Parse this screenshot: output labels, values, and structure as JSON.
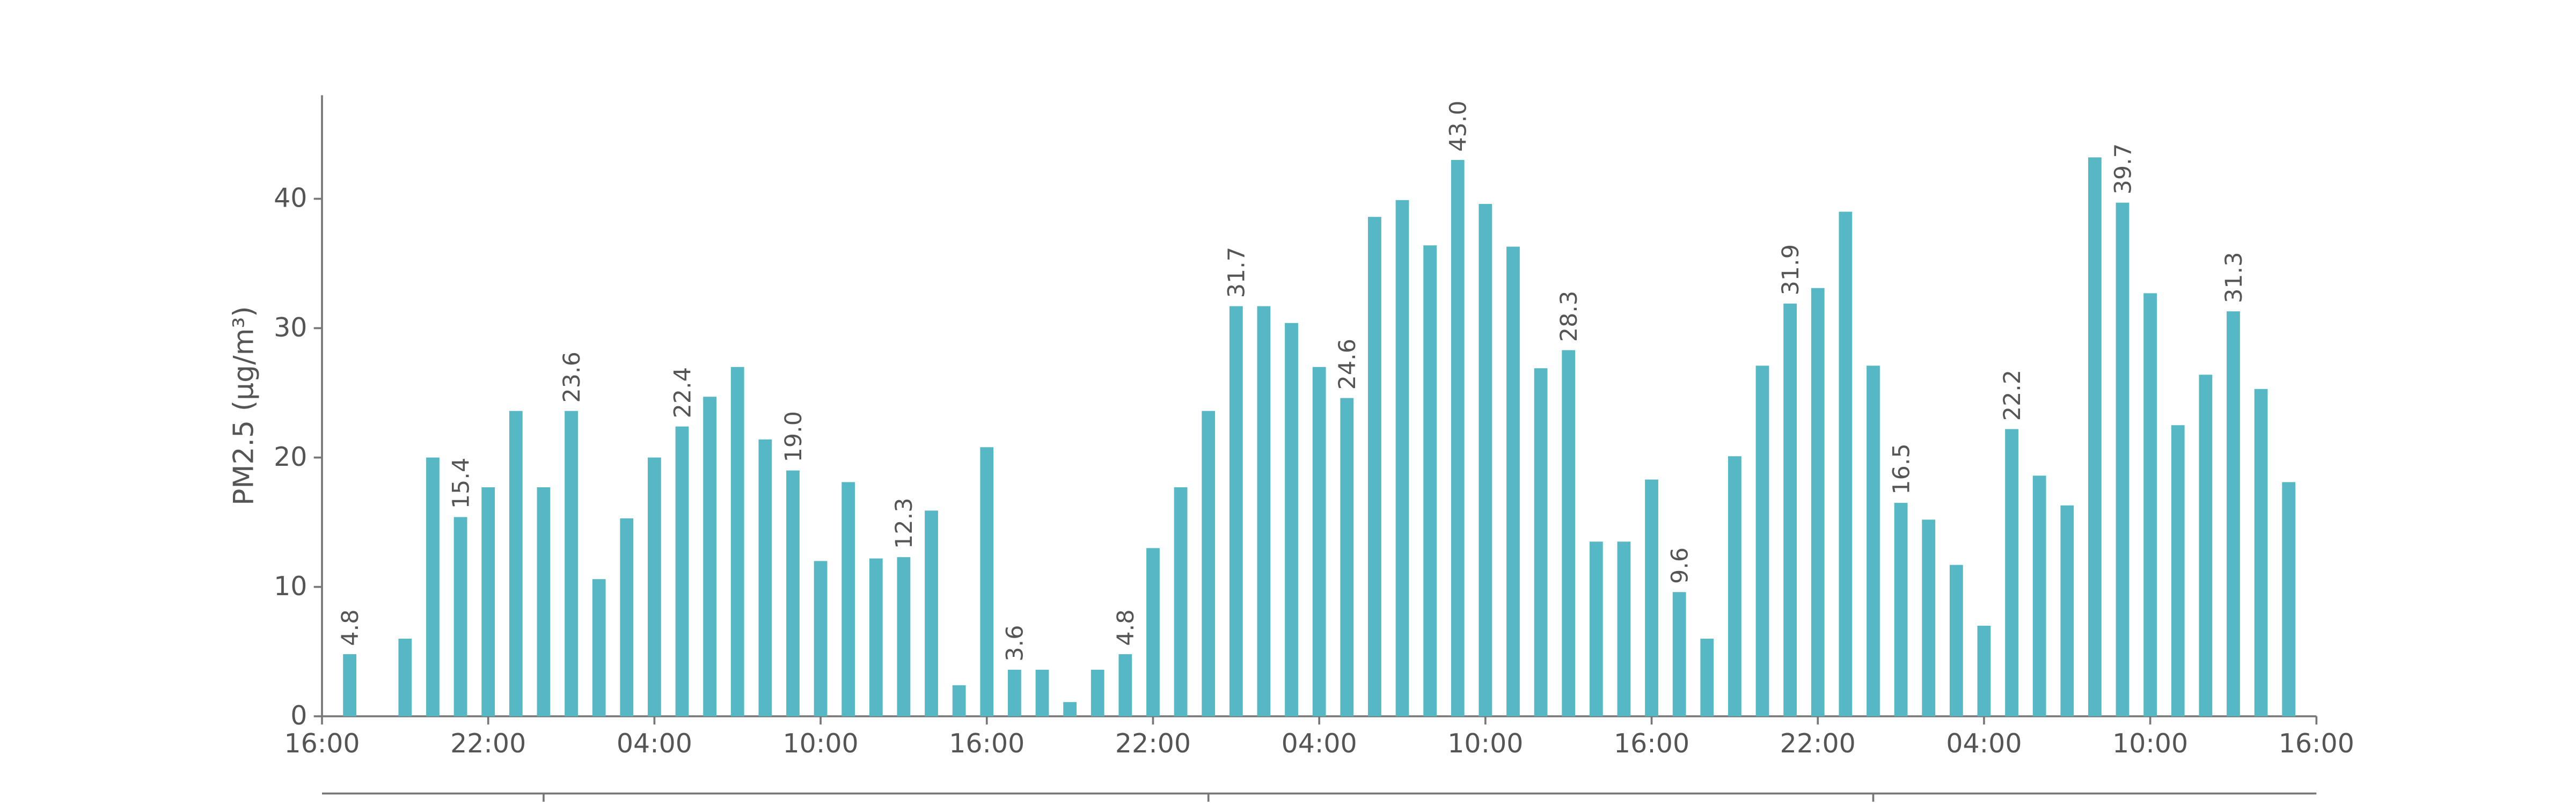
{
  "chart_data": {
    "type": "bar",
    "y_label": "PM2.5 (μg/m³)",
    "x": [
      1,
      2,
      3,
      4,
      5,
      6,
      7,
      8,
      9,
      10,
      11,
      12,
      13,
      14,
      15,
      16,
      17,
      18,
      19,
      20,
      21,
      22,
      23,
      24,
      25,
      26,
      27,
      28,
      29,
      30,
      31,
      32,
      33,
      34,
      35,
      36,
      37,
      38,
      39,
      40,
      41,
      42,
      43,
      44,
      45,
      46,
      47,
      48,
      49,
      50,
      51,
      52,
      53,
      54,
      55,
      56,
      57,
      58,
      59,
      60,
      61,
      62,
      63,
      64,
      65,
      66,
      67,
      68,
      69,
      70,
      71
    ],
    "values": [
      4.8,
      null,
      6.0,
      20.0,
      15.4,
      17.7,
      23.6,
      17.7,
      23.6,
      10.6,
      15.3,
      20.0,
      22.4,
      24.7,
      27.0,
      21.4,
      19.0,
      12.0,
      18.1,
      12.2,
      12.3,
      15.9,
      2.4,
      20.8,
      3.6,
      3.6,
      1.1,
      3.6,
      4.8,
      13.0,
      17.7,
      23.6,
      31.7,
      31.7,
      30.4,
      27.0,
      24.6,
      38.6,
      39.9,
      36.4,
      43.0,
      39.6,
      36.3,
      26.9,
      28.3,
      13.5,
      13.5,
      18.3,
      9.6,
      6.0,
      20.1,
      27.1,
      31.9,
      33.1,
      39.0,
      27.1,
      16.5,
      15.2,
      11.7,
      7.0,
      22.2,
      18.6,
      16.3,
      43.2,
      39.7,
      32.7,
      22.5,
      26.4,
      31.3,
      25.3,
      18.1
    ],
    "value_labels": [
      "4.8",
      null,
      null,
      null,
      "15.4",
      null,
      null,
      null,
      "23.6",
      null,
      null,
      null,
      "22.4",
      null,
      null,
      null,
      "19.0",
      null,
      null,
      null,
      "12.3",
      null,
      null,
      null,
      "3.6",
      null,
      null,
      null,
      "4.8",
      null,
      null,
      null,
      "31.7",
      null,
      null,
      null,
      "24.6",
      null,
      null,
      null,
      "43.0",
      null,
      null,
      null,
      "28.3",
      null,
      null,
      null,
      "9.6",
      null,
      null,
      null,
      "31.9",
      null,
      null,
      null,
      "16.5",
      null,
      null,
      null,
      "22.2",
      null,
      null,
      null,
      "39.7",
      null,
      null,
      null,
      "31.3",
      null,
      null
    ],
    "color": "#56b8c5",
    "xlim": [
      0,
      72
    ],
    "xticks": [
      {
        "value": 0,
        "label": "16:00"
      },
      {
        "value": 6,
        "label": "22:00"
      },
      {
        "value": 12,
        "label": "04:00"
      },
      {
        "value": 18,
        "label": "10:00"
      },
      {
        "value": 24,
        "label": "16:00"
      },
      {
        "value": 30,
        "label": "22:00"
      },
      {
        "value": 36,
        "label": "04:00"
      },
      {
        "value": 42,
        "label": "10:00"
      },
      {
        "value": 48,
        "label": "16:00"
      },
      {
        "value": 54,
        "label": "22:00"
      },
      {
        "value": 60,
        "label": "04:00"
      },
      {
        "value": 66,
        "label": "10:00"
      },
      {
        "value": 72,
        "label": "16:00"
      }
    ],
    "x2ticks": [
      8,
      32,
      56
    ],
    "ylim": [
      0,
      48
    ],
    "yticks": [
      0,
      10,
      20,
      30,
      40
    ]
  }
}
